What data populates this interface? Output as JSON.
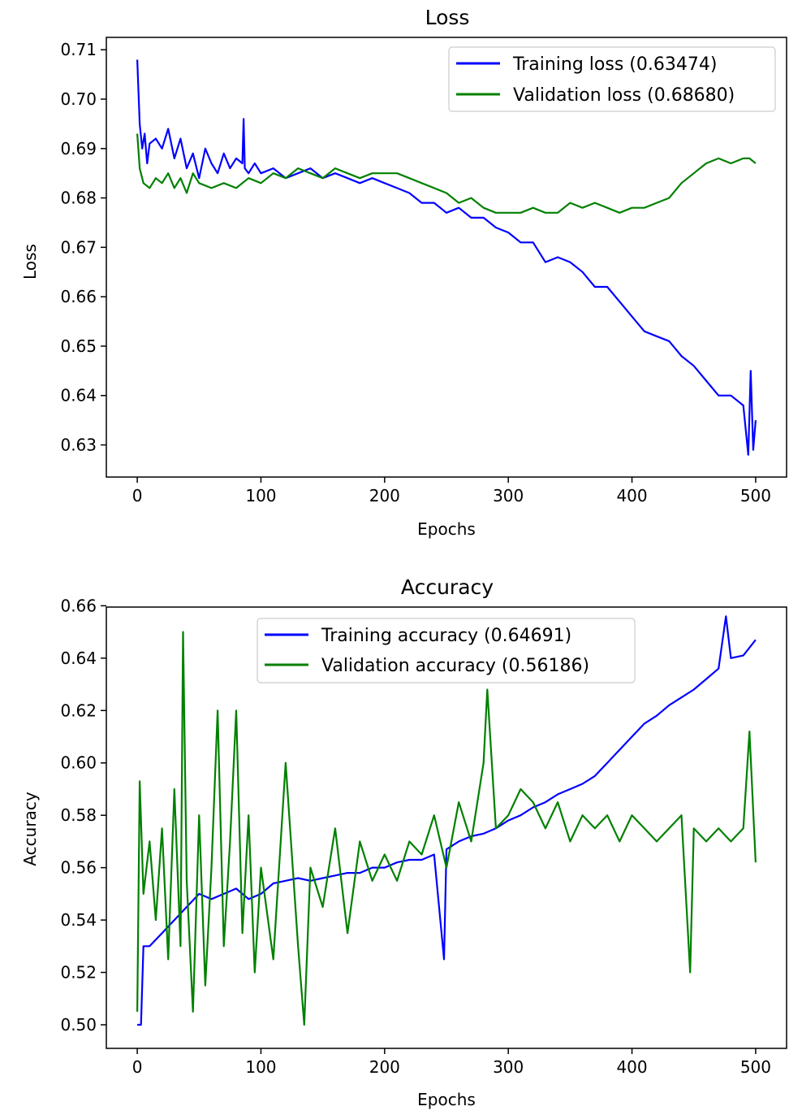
{
  "chart_data": [
    {
      "type": "line",
      "title": "Loss",
      "xlabel": "Epochs",
      "ylabel": "Loss",
      "xlim": [
        -25,
        525
      ],
      "ylim": [
        0.6235,
        0.7125
      ],
      "xticks": [
        0,
        100,
        200,
        300,
        400,
        500
      ],
      "yticks": [
        0.63,
        0.64,
        0.65,
        0.66,
        0.67,
        0.68,
        0.69,
        0.7,
        0.71
      ],
      "ytick_format": 2,
      "legend_position": "top-right",
      "grid": false,
      "series": [
        {
          "name": "Training loss (0.63474)",
          "color": "#0000ff",
          "x": [
            0,
            2,
            4,
            6,
            8,
            10,
            15,
            20,
            25,
            30,
            35,
            40,
            45,
            50,
            55,
            60,
            65,
            70,
            75,
            80,
            85,
            86,
            87,
            90,
            95,
            100,
            110,
            120,
            130,
            140,
            150,
            160,
            170,
            180,
            190,
            200,
            210,
            220,
            230,
            240,
            250,
            260,
            270,
            280,
            290,
            300,
            310,
            320,
            330,
            340,
            350,
            360,
            370,
            380,
            390,
            400,
            410,
            420,
            430,
            440,
            450,
            460,
            470,
            480,
            490,
            494,
            496,
            498,
            500
          ],
          "y": [
            0.708,
            0.695,
            0.69,
            0.693,
            0.687,
            0.691,
            0.692,
            0.69,
            0.694,
            0.688,
            0.692,
            0.686,
            0.689,
            0.684,
            0.69,
            0.687,
            0.685,
            0.689,
            0.686,
            0.688,
            0.687,
            0.696,
            0.686,
            0.685,
            0.687,
            0.685,
            0.686,
            0.684,
            0.685,
            0.686,
            0.684,
            0.685,
            0.684,
            0.683,
            0.684,
            0.683,
            0.682,
            0.681,
            0.679,
            0.679,
            0.677,
            0.678,
            0.676,
            0.676,
            0.674,
            0.673,
            0.671,
            0.671,
            0.667,
            0.668,
            0.667,
            0.665,
            0.662,
            0.662,
            0.659,
            0.656,
            0.653,
            0.652,
            0.651,
            0.648,
            0.646,
            0.643,
            0.64,
            0.64,
            0.638,
            0.628,
            0.645,
            0.629,
            0.635
          ]
        },
        {
          "name": "Validation loss (0.68680)",
          "color": "#008000",
          "x": [
            0,
            2,
            5,
            10,
            15,
            20,
            25,
            30,
            35,
            40,
            45,
            50,
            60,
            70,
            80,
            90,
            100,
            110,
            120,
            130,
            140,
            150,
            160,
            170,
            180,
            190,
            200,
            210,
            220,
            230,
            240,
            250,
            260,
            270,
            280,
            290,
            300,
            310,
            320,
            330,
            340,
            350,
            360,
            370,
            380,
            390,
            400,
            410,
            420,
            430,
            440,
            450,
            460,
            470,
            480,
            490,
            495,
            500
          ],
          "y": [
            0.693,
            0.686,
            0.683,
            0.682,
            0.684,
            0.683,
            0.685,
            0.682,
            0.684,
            0.681,
            0.685,
            0.683,
            0.682,
            0.683,
            0.682,
            0.684,
            0.683,
            0.685,
            0.684,
            0.686,
            0.685,
            0.684,
            0.686,
            0.685,
            0.684,
            0.685,
            0.685,
            0.685,
            0.684,
            0.683,
            0.682,
            0.681,
            0.679,
            0.68,
            0.678,
            0.677,
            0.677,
            0.677,
            0.678,
            0.677,
            0.677,
            0.679,
            0.678,
            0.679,
            0.678,
            0.677,
            0.678,
            0.678,
            0.679,
            0.68,
            0.683,
            0.685,
            0.687,
            0.688,
            0.687,
            0.688,
            0.688,
            0.687
          ]
        }
      ]
    },
    {
      "type": "line",
      "title": "Accuracy",
      "xlabel": "Epochs",
      "ylabel": "Accuracy",
      "xlim": [
        -25,
        525
      ],
      "ylim": [
        0.491,
        0.6595
      ],
      "xticks": [
        0,
        100,
        200,
        300,
        400,
        500
      ],
      "yticks": [
        0.5,
        0.52,
        0.54,
        0.56,
        0.58,
        0.6,
        0.62,
        0.64,
        0.66
      ],
      "ytick_format": 2,
      "legend_position": "upper-center",
      "grid": false,
      "series": [
        {
          "name": "Training accuracy (0.64691)",
          "color": "#0000ff",
          "x": [
            0,
            3,
            5,
            10,
            20,
            30,
            40,
            50,
            60,
            70,
            80,
            90,
            100,
            110,
            120,
            130,
            140,
            150,
            160,
            170,
            180,
            190,
            200,
            210,
            220,
            230,
            240,
            248,
            250,
            260,
            270,
            280,
            290,
            300,
            310,
            320,
            330,
            340,
            350,
            360,
            370,
            380,
            390,
            400,
            410,
            420,
            430,
            440,
            450,
            460,
            470,
            476,
            480,
            490,
            500
          ],
          "y": [
            0.5,
            0.5,
            0.53,
            0.53,
            0.535,
            0.54,
            0.545,
            0.55,
            0.548,
            0.55,
            0.552,
            0.548,
            0.55,
            0.554,
            0.555,
            0.556,
            0.555,
            0.556,
            0.557,
            0.558,
            0.558,
            0.56,
            0.56,
            0.562,
            0.563,
            0.563,
            0.565,
            0.525,
            0.567,
            0.57,
            0.572,
            0.573,
            0.575,
            0.578,
            0.58,
            0.583,
            0.585,
            0.588,
            0.59,
            0.592,
            0.595,
            0.6,
            0.605,
            0.61,
            0.615,
            0.618,
            0.622,
            0.625,
            0.628,
            0.632,
            0.636,
            0.656,
            0.64,
            0.641,
            0.647
          ]
        },
        {
          "name": "Validation accuracy (0.56186)",
          "color": "#008000",
          "x": [
            0,
            2,
            5,
            10,
            15,
            20,
            25,
            30,
            35,
            37,
            40,
            45,
            50,
            55,
            60,
            65,
            70,
            75,
            80,
            85,
            90,
            95,
            100,
            110,
            120,
            130,
            135,
            140,
            150,
            160,
            170,
            180,
            190,
            200,
            210,
            220,
            230,
            240,
            250,
            260,
            270,
            280,
            283,
            290,
            300,
            310,
            320,
            330,
            340,
            350,
            360,
            370,
            380,
            390,
            400,
            410,
            420,
            430,
            440,
            447,
            450,
            460,
            470,
            480,
            490,
            495,
            500
          ],
          "y": [
            0.505,
            0.593,
            0.55,
            0.57,
            0.54,
            0.575,
            0.525,
            0.59,
            0.53,
            0.65,
            0.555,
            0.505,
            0.58,
            0.515,
            0.56,
            0.62,
            0.53,
            0.57,
            0.62,
            0.535,
            0.58,
            0.52,
            0.56,
            0.525,
            0.6,
            0.53,
            0.5,
            0.56,
            0.545,
            0.575,
            0.535,
            0.57,
            0.555,
            0.565,
            0.555,
            0.57,
            0.565,
            0.58,
            0.56,
            0.585,
            0.57,
            0.6,
            0.628,
            0.575,
            0.58,
            0.59,
            0.585,
            0.575,
            0.585,
            0.57,
            0.58,
            0.575,
            0.58,
            0.57,
            0.58,
            0.575,
            0.57,
            0.575,
            0.58,
            0.52,
            0.575,
            0.57,
            0.575,
            0.57,
            0.575,
            0.612,
            0.562
          ]
        }
      ]
    }
  ]
}
